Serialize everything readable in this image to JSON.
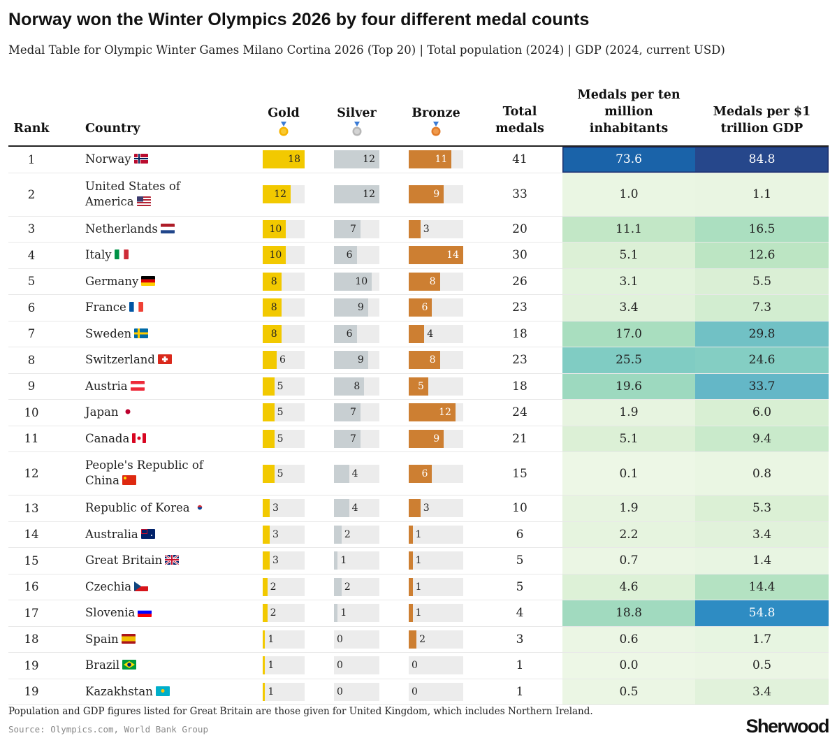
{
  "header": {
    "title": "Norway won the Winter Olympics 2026 by four different medal counts",
    "subtitle": "Medal Table for Olympic Winter Games Milano Cortina 2026 (Top 20) | Total population (2024) | GDP (2024, current USD)"
  },
  "columns": {
    "rank": "Rank",
    "country": "Country",
    "gold": "Gold",
    "silver": "Silver",
    "bronze": "Bronze",
    "total": [
      "Total",
      "medals"
    ],
    "per_pop": [
      "Medals per ten",
      "million",
      "inhabitants"
    ],
    "per_gdp": [
      "Medals per $1",
      "trillion GDP"
    ]
  },
  "icons": {
    "gold": "gold-medal-icon",
    "silver": "silver-medal-icon",
    "bronze": "bronze-medal-icon"
  },
  "colors": {
    "gold": "#f2c900",
    "silver": "#c8cfd2",
    "bronze": "#cd7f32",
    "track": "#ececec",
    "heat_low": "#edf7e6",
    "heat_mid": "#86cdc0",
    "heat_high": "#1d5fa6",
    "heat_max": "#25468a"
  },
  "footer": {
    "note": "Population and GDP figures listed for Great Britain are those given for United Kingdom, which includes Northern Ireland.",
    "source": "Source: Olympics.com, World Bank Group",
    "brand": "Sherwood"
  },
  "chart_data": {
    "type": "table",
    "title": "Norway won the Winter Olympics 2026 by four different medal counts",
    "subtitle": "Medal Table for Olympic Winter Games Milano Cortina 2026 (Top 20) | Total population (2024) | GDP (2024, current USD)",
    "bar_scale_max": {
      "gold": 18,
      "silver": 12,
      "bronze": 14
    },
    "rows": [
      {
        "rank": "1",
        "country": "Norway",
        "flag": "NO",
        "gold": 18,
        "silver": 12,
        "bronze": 11,
        "total": 41,
        "per_pop": "73.6",
        "per_gdp": "84.8"
      },
      {
        "rank": "2",
        "country": "United States of America",
        "flag": "US",
        "gold": 12,
        "silver": 12,
        "bronze": 9,
        "total": 33,
        "per_pop": "1.0",
        "per_gdp": "1.1"
      },
      {
        "rank": "3",
        "country": "Netherlands",
        "flag": "NL",
        "gold": 10,
        "silver": 7,
        "bronze": 3,
        "total": 20,
        "per_pop": "11.1",
        "per_gdp": "16.5"
      },
      {
        "rank": "4",
        "country": "Italy",
        "flag": "IT",
        "gold": 10,
        "silver": 6,
        "bronze": 14,
        "total": 30,
        "per_pop": "5.1",
        "per_gdp": "12.6"
      },
      {
        "rank": "5",
        "country": "Germany",
        "flag": "DE",
        "gold": 8,
        "silver": 10,
        "bronze": 8,
        "total": 26,
        "per_pop": "3.1",
        "per_gdp": "5.5"
      },
      {
        "rank": "6",
        "country": "France",
        "flag": "FR",
        "gold": 8,
        "silver": 9,
        "bronze": 6,
        "total": 23,
        "per_pop": "3.4",
        "per_gdp": "7.3"
      },
      {
        "rank": "7",
        "country": "Sweden",
        "flag": "SE",
        "gold": 8,
        "silver": 6,
        "bronze": 4,
        "total": 18,
        "per_pop": "17.0",
        "per_gdp": "29.8"
      },
      {
        "rank": "8",
        "country": "Switzerland",
        "flag": "CH",
        "gold": 6,
        "silver": 9,
        "bronze": 8,
        "total": 23,
        "per_pop": "25.5",
        "per_gdp": "24.6"
      },
      {
        "rank": "9",
        "country": "Austria",
        "flag": "AT",
        "gold": 5,
        "silver": 8,
        "bronze": 5,
        "total": 18,
        "per_pop": "19.6",
        "per_gdp": "33.7"
      },
      {
        "rank": "10",
        "country": "Japan",
        "flag": "JP",
        "gold": 5,
        "silver": 7,
        "bronze": 12,
        "total": 24,
        "per_pop": "1.9",
        "per_gdp": "6.0"
      },
      {
        "rank": "11",
        "country": "Canada",
        "flag": "CA",
        "gold": 5,
        "silver": 7,
        "bronze": 9,
        "total": 21,
        "per_pop": "5.1",
        "per_gdp": "9.4"
      },
      {
        "rank": "12",
        "country": "People's Republic of China",
        "flag": "CN",
        "gold": 5,
        "silver": 4,
        "bronze": 6,
        "total": 15,
        "per_pop": "0.1",
        "per_gdp": "0.8"
      },
      {
        "rank": "13",
        "country": "Republic of Korea",
        "flag": "KR",
        "gold": 3,
        "silver": 4,
        "bronze": 3,
        "total": 10,
        "per_pop": "1.9",
        "per_gdp": "5.3"
      },
      {
        "rank": "14",
        "country": "Australia",
        "flag": "AU",
        "gold": 3,
        "silver": 2,
        "bronze": 1,
        "total": 6,
        "per_pop": "2.2",
        "per_gdp": "3.4"
      },
      {
        "rank": "15",
        "country": "Great Britain",
        "flag": "GB",
        "gold": 3,
        "silver": 1,
        "bronze": 1,
        "total": 5,
        "per_pop": "0.7",
        "per_gdp": "1.4"
      },
      {
        "rank": "16",
        "country": "Czechia",
        "flag": "CZ",
        "gold": 2,
        "silver": 2,
        "bronze": 1,
        "total": 5,
        "per_pop": "4.6",
        "per_gdp": "14.4"
      },
      {
        "rank": "17",
        "country": "Slovenia",
        "flag": "SI",
        "gold": 2,
        "silver": 1,
        "bronze": 1,
        "total": 4,
        "per_pop": "18.8",
        "per_gdp": "54.8"
      },
      {
        "rank": "18",
        "country": "Spain",
        "flag": "ES",
        "gold": 1,
        "silver": 0,
        "bronze": 2,
        "total": 3,
        "per_pop": "0.6",
        "per_gdp": "1.7"
      },
      {
        "rank": "19",
        "country": "Brazil",
        "flag": "BR",
        "gold": 1,
        "silver": 0,
        "bronze": 0,
        "total": 1,
        "per_pop": "0.0",
        "per_gdp": "0.5"
      },
      {
        "rank": "19",
        "country": "Kazakhstan",
        "flag": "KZ",
        "gold": 1,
        "silver": 0,
        "bronze": 0,
        "total": 1,
        "per_pop": "0.5",
        "per_gdp": "3.4"
      }
    ]
  }
}
